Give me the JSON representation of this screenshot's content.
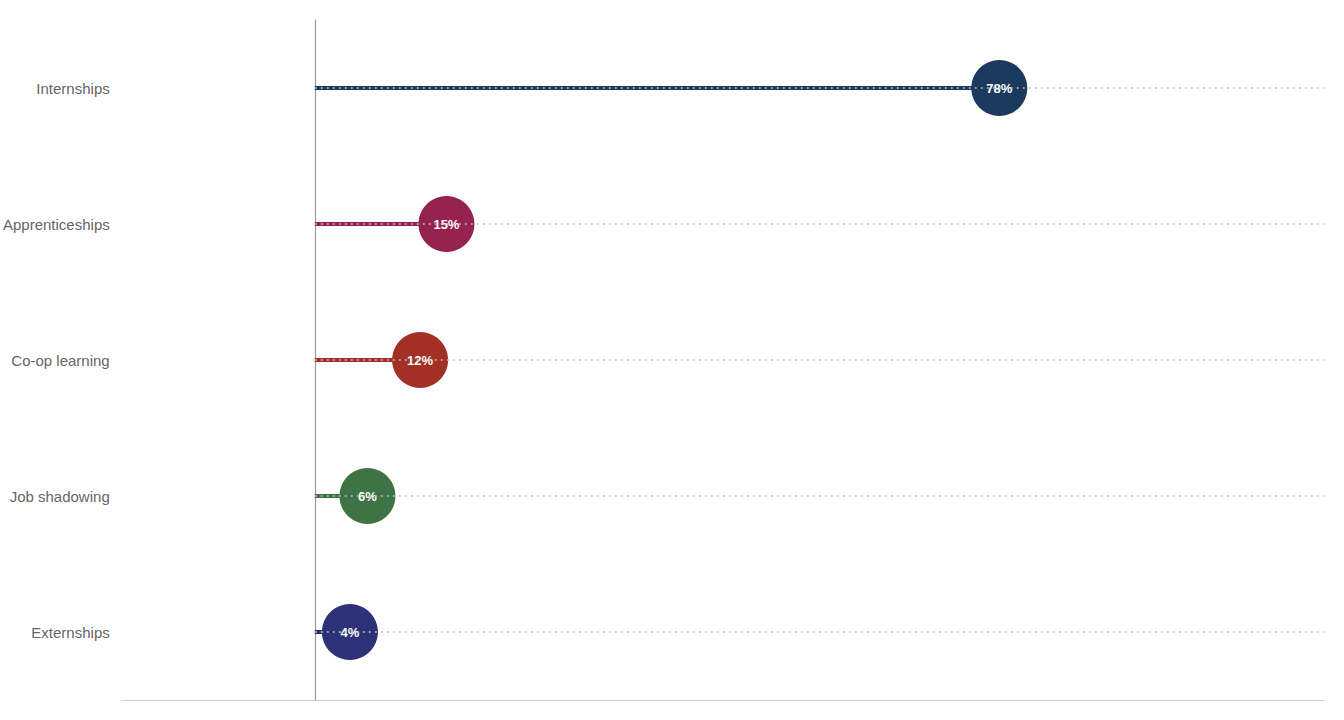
{
  "chart_data": {
    "type": "lollipop",
    "orientation": "horizontal",
    "categories": [
      "Internships",
      "Apprenticeships",
      "Co-op learning",
      "Job shadowing",
      "Externships"
    ],
    "values": [
      78,
      15,
      12,
      6,
      4
    ],
    "value_labels": [
      "78%",
      "15%",
      "12%",
      "6%",
      "4%"
    ],
    "colors": [
      "#1c3a5e",
      "#962251",
      "#a33024",
      "#3d7345",
      "#2d3278"
    ],
    "xlim": [
      -22,
      115
    ],
    "xticks": [],
    "tick_labels": false,
    "data_labels": true,
    "grid": true
  }
}
